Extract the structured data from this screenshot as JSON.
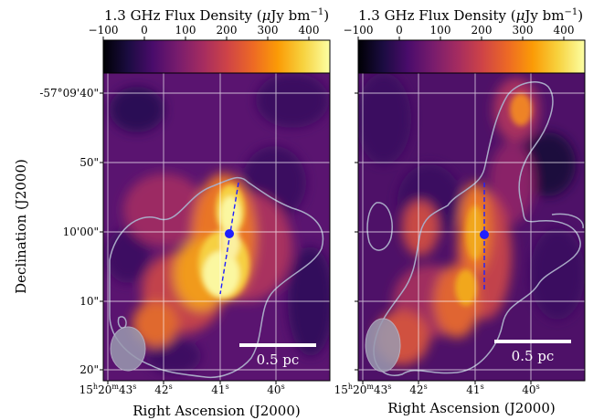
{
  "colors": {
    "colormap": [
      "#000004",
      "#1b0c41",
      "#4a0c6b",
      "#781c6d",
      "#a52c60",
      "#cf4446",
      "#ed6925",
      "#fb9b06",
      "#f7d13d",
      "#fcffa4"
    ],
    "contour": "#a9a9c6",
    "marker": "#1f1fff",
    "scalebar": "#ffffff",
    "grid": "#ffffff"
  },
  "chart_data": [
    {
      "type": "heatmap",
      "panel": "left",
      "colorbar": {
        "label": "1.3 GHz Flux Density (μJy bm⁻¹)",
        "ticks": [
          "−100",
          "0",
          "100",
          "200",
          "300",
          "400"
        ],
        "range": [
          -100,
          450
        ]
      },
      "xlabel": "Right Ascension (J2000)",
      "ylabel": "Declination (J2000)",
      "xticks": [
        "15h20m43s",
        "42s",
        "41s",
        "40s"
      ],
      "yticks": [
        "-57°09'40\"",
        "50\"",
        "10'00\"",
        "10\"",
        "20\""
      ],
      "scalebar_label": "0.5 pc",
      "marker": "dot with dashed jet axis",
      "grid": true
    },
    {
      "type": "heatmap",
      "panel": "right",
      "colorbar": {
        "label": "1.3 GHz Flux Density (μJy bm⁻¹)",
        "ticks": [
          "−100",
          "0",
          "100",
          "200",
          "300",
          "400"
        ],
        "range": [
          -100,
          450
        ]
      },
      "xlabel": "Right Ascension (J2000)",
      "xticks": [
        "15h20m43s",
        "42s",
        "41s",
        "40s"
      ],
      "scalebar_label": "0.5 pc",
      "marker": "dot with dashed vertical axis",
      "grid": true
    }
  ],
  "labels": {
    "cb_title_prefix": "1.3 GHz Flux Density (",
    "cb_title_mu": "μ",
    "cb_title_unit": "Jy bm",
    "cb_title_exp": "−1",
    "cb_title_suffix": ")",
    "ylabel": "Declination (J2000)",
    "xlabel": "Right Ascension (J2000)",
    "scalebar": "0.5 pc",
    "cb_ticks": [
      "−100",
      "0",
      "100",
      "200",
      "300",
      "400"
    ],
    "yticks": [
      "-57°09'40\"",
      "50\"",
      "10'00\"",
      "10\"",
      "20\""
    ],
    "xt_ra_h": "15",
    "xt_ra_m": "20",
    "xt_ra_s": "43",
    "xt_42": "42",
    "xt_41": "41",
    "xt_40": "40",
    "sup_h": "h",
    "sup_m": "m",
    "sup_s": "s"
  }
}
